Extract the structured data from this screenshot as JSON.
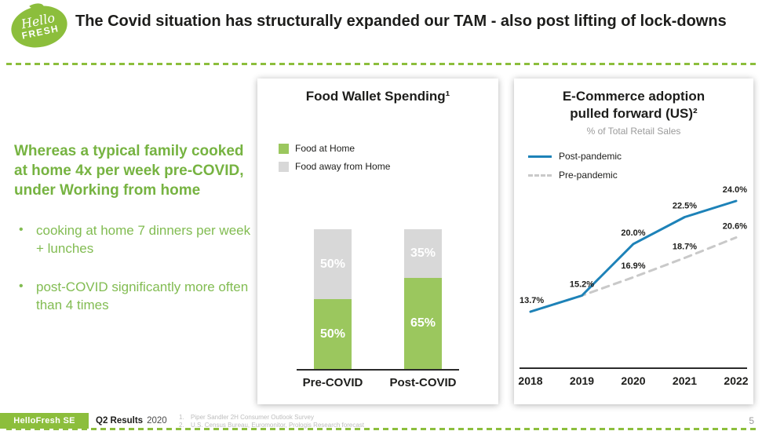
{
  "colors": {
    "brand_green": "#8CBE3C",
    "heading_green": "#76B341",
    "bullet_green": "#82BC52",
    "dark_text": "#1D1D1B",
    "muted_gray": "#9B9B9B"
  },
  "logo": {
    "word1": "Hello",
    "word2": "FRESH"
  },
  "header": {
    "title": "The Covid situation has structurally expanded our TAM - also post lifting of lock-downs"
  },
  "left_panel": {
    "heading": "Whereas a typical family cooked at home 4x per week pre-COVID, under Working from home",
    "bullet_marker": "•",
    "bullets": [
      "cooking at home 7 dinners per week + lunches",
      "post-COVID significantly more often than 4 times"
    ]
  },
  "footer": {
    "brand": "HelloFresh SE",
    "report": "Q2 Results",
    "year": "2020",
    "footnotes": [
      {
        "num": "1.",
        "text": "Piper Sandler 2H Consumer Outlook Survey"
      },
      {
        "num": "2.",
        "text": "U.S. Census Bureau, Euromonitor, Prologis Research forecast"
      }
    ],
    "page_number": "5"
  },
  "chart_data": [
    {
      "type": "bar",
      "stacked": true,
      "title": "Food Wallet Spending¹",
      "categories": [
        "Pre-COVID",
        "Post-COVID"
      ],
      "series": [
        {
          "name": "Food at Home",
          "color": "#9BC75E",
          "values": [
            50,
            65
          ]
        },
        {
          "name": "Food away from Home",
          "color": "#D8D8D8",
          "values": [
            50,
            35
          ]
        }
      ],
      "value_suffix": "%",
      "ylim": [
        0,
        100
      ],
      "legend_position": "top-left"
    },
    {
      "type": "line",
      "title": "E-Commerce adoption pulled forward (US)²",
      "subtitle": "% of Total Retail Sales",
      "x": [
        "2018",
        "2019",
        "2020",
        "2021",
        "2022"
      ],
      "series": [
        {
          "name": "Post-pandemic",
          "style": "solid",
          "color": "#1D82B8",
          "values": [
            13.7,
            15.2,
            20.0,
            22.5,
            24.0
          ]
        },
        {
          "name": "Pre-pandemic",
          "style": "dashed",
          "color": "#C9C9C9",
          "values": [
            13.7,
            15.2,
            16.9,
            18.7,
            20.6
          ]
        }
      ],
      "value_suffix": "%",
      "ylim": [
        12,
        26
      ],
      "legend_position": "top-left",
      "grid": false
    }
  ]
}
